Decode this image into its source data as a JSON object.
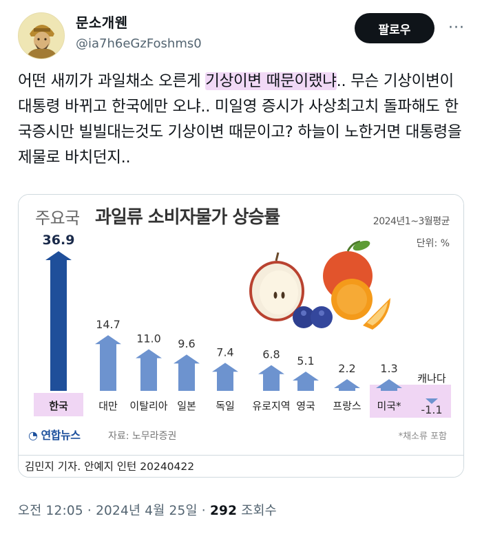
{
  "author": {
    "display_name": "문소개웬",
    "handle": "@ia7h6eGzFoshms0"
  },
  "follow_button": "팔로우",
  "more_icon": "more-horizontal-icon",
  "tweet": {
    "seg1": "어떤 새끼가 과일채소 오른게 ",
    "highlight": "기상이변 때문이랬냐",
    "seg2": ".. 무슨 기상이변이 대통령 바뀌고 한국에만 오냐.. 미일영 증시가 사상최고치 돌파해도 한국증시만 빌빌대는것도 기상이변 때문이고? 하늘이 노한거면 대통령을 제물로 바치던지.."
  },
  "card": {
    "title_prefix": "주요국",
    "title_main": "과일류 소비자물가 상승률",
    "period": "2024년1~3월평균",
    "unit": "단위: %",
    "logo": "연합뉴스",
    "source": "자료: 노무라증권",
    "note": "*채소류 포함",
    "byline": "김민지 기자. 안예지 인턴  20240422"
  },
  "chart_data": {
    "type": "bar",
    "categories": [
      "한국",
      "대만",
      "이탈리아",
      "일본",
      "독일",
      "유로지역",
      "영국",
      "프랑스",
      "미국*",
      "캐나다"
    ],
    "values": [
      36.9,
      14.7,
      11.0,
      9.6,
      7.4,
      6.8,
      5.1,
      2.2,
      1.3,
      -1.1
    ],
    "value_labels": [
      "36.9",
      "14.7",
      "11.0",
      "9.6",
      "7.4",
      "6.8",
      "5.1",
      "2.2",
      "1.3",
      "-1.1"
    ],
    "title": "과일류 소비자물가 상승률",
    "ylabel": "단위: %",
    "highlighted": [
      "한국",
      "미국*",
      "캐나다"
    ],
    "colors": {
      "top_bar": "#1f4f9a",
      "bar": "#6d93cf",
      "highlight_bg": "#f0d6f4"
    }
  },
  "timestamp": {
    "text": "오전 12:05 · 2024년 4월 25일 · ",
    "views": "292",
    "views_label": " 조회수"
  }
}
